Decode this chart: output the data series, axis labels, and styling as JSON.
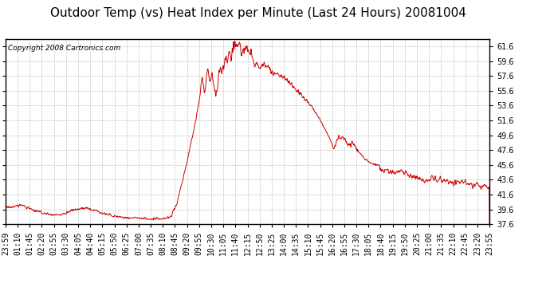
{
  "title": "Outdoor Temp (vs) Heat Index per Minute (Last 24 Hours) 20081004",
  "copyright": "Copyright 2008 Cartronics.com",
  "line_color": "#cc0000",
  "background_color": "#ffffff",
  "grid_color": "#bbbbbb",
  "ylim": [
    37.6,
    62.6
  ],
  "yticks": [
    37.6,
    39.6,
    41.6,
    43.6,
    45.6,
    47.6,
    49.6,
    51.6,
    53.6,
    55.6,
    57.6,
    59.6,
    61.6
  ],
  "xtick_labels": [
    "23:59",
    "01:10",
    "01:45",
    "02:20",
    "02:55",
    "03:30",
    "04:05",
    "04:40",
    "05:15",
    "05:50",
    "06:25",
    "07:00",
    "07:35",
    "08:10",
    "08:45",
    "09:20",
    "09:55",
    "10:30",
    "11:05",
    "11:40",
    "12:15",
    "12:50",
    "13:25",
    "14:00",
    "14:35",
    "15:10",
    "15:45",
    "16:20",
    "16:55",
    "17:30",
    "18:05",
    "18:40",
    "19:15",
    "19:50",
    "20:25",
    "21:00",
    "21:35",
    "22:10",
    "22:45",
    "23:20",
    "23:55"
  ],
  "title_fontsize": 11,
  "tick_fontsize": 7,
  "copyright_fontsize": 6.5
}
